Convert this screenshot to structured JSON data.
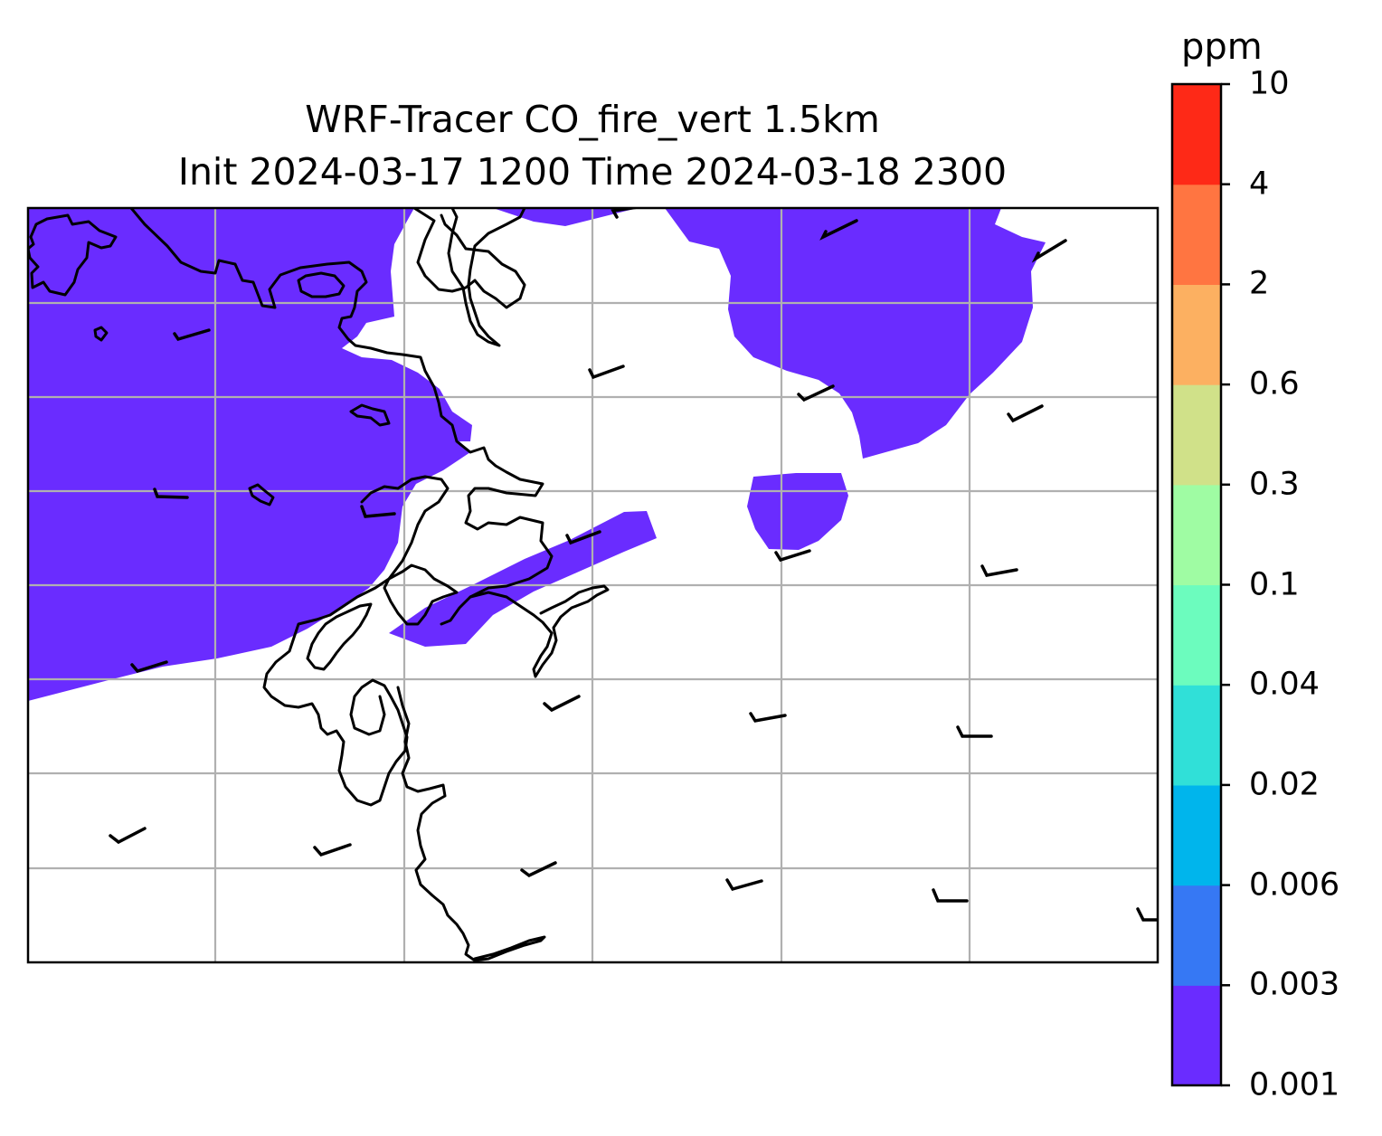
{
  "title": {
    "line1": "WRF-Tracer CO_fire_vert 1.5km",
    "line2": "Init 2024-03-17 1200 Time 2024-03-18 2300"
  },
  "map": {
    "tracer_fill_color": "#6a2cff",
    "coastline_color": "#000000",
    "gridline_color": "#b0b0b0",
    "wind_barb_color": "#000000"
  },
  "colorbar": {
    "unit": "ppm",
    "levels": [
      "0.001",
      "0.003",
      "0.006",
      "0.02",
      "0.04",
      "0.1",
      "0.3",
      "0.6",
      "2",
      "4",
      "10"
    ],
    "colors": [
      "#6a2cff",
      "#3678f4",
      "#00b5ec",
      "#30e0d8",
      "#6cfcbe",
      "#9ffca3",
      "#d0e189",
      "#fcb061",
      "#ff7541",
      "#fe2917"
    ]
  }
}
